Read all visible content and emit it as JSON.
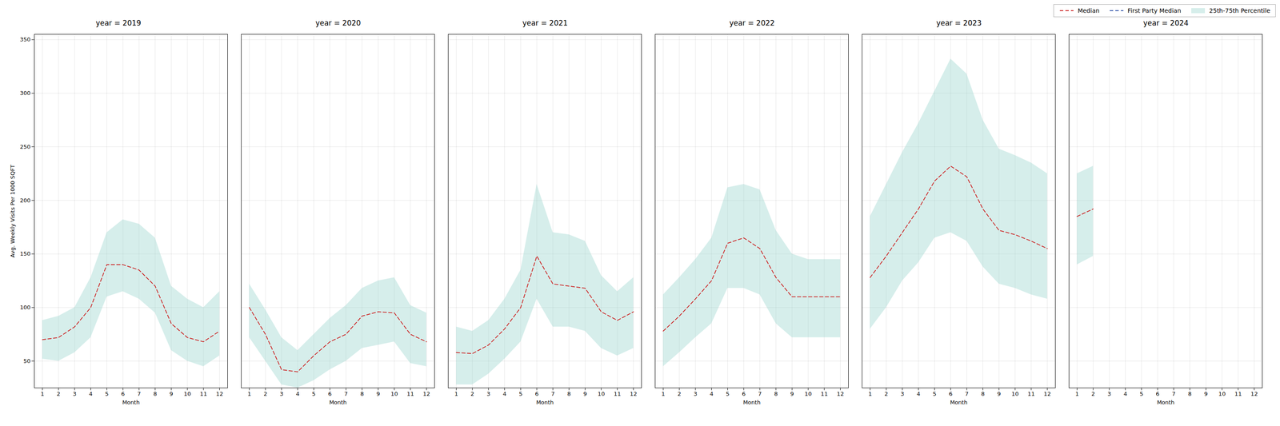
{
  "chart_data": [
    {
      "type": "line",
      "title": "year = 2019",
      "xlabel": "Month",
      "ylabel": "Avg. Weekly Visits Per 1000 SQFT",
      "x": [
        1,
        2,
        3,
        4,
        5,
        6,
        7,
        8,
        9,
        10,
        11,
        12
      ],
      "series": [
        {
          "name": "Median",
          "color": "#cc2222",
          "line_style": "dashed",
          "values": [
            70,
            72,
            82,
            100,
            140,
            140,
            135,
            120,
            85,
            72,
            68,
            78
          ]
        },
        {
          "name": "First Party Median",
          "color": "#3355aa",
          "line_style": "dashed",
          "values": [
            null,
            null,
            null,
            null,
            null,
            null,
            null,
            null,
            null,
            null,
            null,
            null
          ]
        },
        {
          "name": "25th-75th Percentile",
          "type": "band",
          "color": "#99d4cc",
          "lower": [
            52,
            50,
            58,
            72,
            110,
            115,
            108,
            95,
            60,
            50,
            45,
            55
          ],
          "upper": [
            88,
            92,
            100,
            128,
            170,
            182,
            178,
            165,
            120,
            108,
            100,
            115
          ]
        }
      ],
      "xlim": [
        0.5,
        12.5
      ],
      "xticks": [
        1,
        2,
        3,
        4,
        5,
        6,
        7,
        8,
        9,
        10,
        11,
        12
      ],
      "ylim": [
        25,
        355
      ],
      "yticks": [
        50,
        100,
        150,
        200,
        250,
        300,
        350
      ],
      "grid": true
    },
    {
      "type": "line",
      "title": "year = 2020",
      "xlabel": "Month",
      "x": [
        1,
        2,
        3,
        4,
        5,
        6,
        7,
        8,
        9,
        10,
        11,
        12
      ],
      "series": [
        {
          "name": "Median",
          "color": "#cc2222",
          "line_style": "dashed",
          "values": [
            100,
            75,
            42,
            40,
            55,
            68,
            75,
            92,
            96,
            95,
            75,
            68
          ]
        },
        {
          "name": "First Party Median",
          "color": "#3355aa",
          "line_style": "dashed",
          "values": [
            null,
            null,
            null,
            null,
            null,
            null,
            null,
            null,
            null,
            null,
            null,
            null
          ]
        },
        {
          "name": "25th-75th Percentile",
          "type": "band",
          "color": "#99d4cc",
          "lower": [
            72,
            50,
            28,
            25,
            32,
            42,
            50,
            62,
            65,
            68,
            48,
            45
          ],
          "upper": [
            122,
            98,
            72,
            60,
            75,
            90,
            102,
            118,
            125,
            128,
            102,
            95
          ]
        }
      ],
      "xlim": [
        0.5,
        12.5
      ],
      "xticks": [
        1,
        2,
        3,
        4,
        5,
        6,
        7,
        8,
        9,
        10,
        11,
        12
      ],
      "ylim": [
        25,
        355
      ],
      "yticks": [
        50,
        100,
        150,
        200,
        250,
        300,
        350
      ],
      "grid": true,
      "tick_labels": "x"
    },
    {
      "type": "line",
      "title": "year = 2021",
      "xlabel": "Month",
      "x": [
        1,
        2,
        3,
        4,
        5,
        6,
        7,
        8,
        9,
        10,
        11,
        12
      ],
      "series": [
        {
          "name": "Median",
          "color": "#cc2222",
          "line_style": "dashed",
          "values": [
            58,
            57,
            65,
            80,
            100,
            148,
            122,
            120,
            118,
            96,
            88,
            96
          ]
        },
        {
          "name": "First Party Median",
          "color": "#3355aa",
          "line_style": "dashed",
          "values": [
            null,
            null,
            null,
            null,
            null,
            null,
            null,
            null,
            null,
            null,
            null,
            null
          ]
        },
        {
          "name": "25th-75th Percentile",
          "type": "band",
          "color": "#99d4cc",
          "lower": [
            28,
            28,
            38,
            52,
            68,
            108,
            82,
            82,
            78,
            62,
            55,
            62
          ],
          "upper": [
            82,
            78,
            88,
            108,
            135,
            215,
            170,
            168,
            162,
            130,
            115,
            128
          ]
        }
      ],
      "xlim": [
        0.5,
        12.5
      ],
      "xticks": [
        1,
        2,
        3,
        4,
        5,
        6,
        7,
        8,
        9,
        10,
        11,
        12
      ],
      "ylim": [
        25,
        355
      ],
      "yticks": [
        50,
        100,
        150,
        200,
        250,
        300,
        350
      ],
      "grid": true,
      "tick_labels": "x"
    },
    {
      "type": "line",
      "title": "year = 2022",
      "xlabel": "Month",
      "x": [
        1,
        2,
        3,
        4,
        5,
        6,
        7,
        8,
        9,
        10,
        11,
        12
      ],
      "series": [
        {
          "name": "Median",
          "color": "#cc2222",
          "line_style": "dashed",
          "values": [
            78,
            92,
            108,
            125,
            160,
            165,
            155,
            128,
            110,
            110,
            110,
            110
          ]
        },
        {
          "name": "First Party Median",
          "color": "#3355aa",
          "line_style": "dashed",
          "values": [
            null,
            null,
            null,
            null,
            null,
            null,
            null,
            null,
            null,
            null,
            null,
            null
          ]
        },
        {
          "name": "25th-75th Percentile",
          "type": "band",
          "color": "#99d4cc",
          "lower": [
            45,
            58,
            72,
            85,
            118,
            118,
            112,
            85,
            72,
            72,
            72,
            72
          ],
          "upper": [
            112,
            128,
            145,
            165,
            212,
            215,
            210,
            172,
            150,
            145,
            145,
            145
          ]
        }
      ],
      "xlim": [
        0.5,
        12.5
      ],
      "xticks": [
        1,
        2,
        3,
        4,
        5,
        6,
        7,
        8,
        9,
        10,
        11,
        12
      ],
      "ylim": [
        25,
        355
      ],
      "yticks": [
        50,
        100,
        150,
        200,
        250,
        300,
        350
      ],
      "grid": true,
      "tick_labels": "x"
    },
    {
      "type": "line",
      "title": "year = 2023",
      "xlabel": "Month",
      "x": [
        1,
        2,
        3,
        4,
        5,
        6,
        7,
        8,
        9,
        10,
        11,
        12
      ],
      "series": [
        {
          "name": "Median",
          "color": "#cc2222",
          "line_style": "dashed",
          "values": [
            128,
            148,
            170,
            192,
            218,
            232,
            222,
            192,
            172,
            168,
            162,
            155
          ]
        },
        {
          "name": "First Party Median",
          "color": "#3355aa",
          "line_style": "dashed",
          "values": [
            null,
            null,
            null,
            null,
            null,
            null,
            null,
            null,
            null,
            null,
            null,
            null
          ]
        },
        {
          "name": "25th-75th Percentile",
          "type": "band",
          "color": "#99d4cc",
          "lower": [
            80,
            100,
            125,
            142,
            165,
            170,
            162,
            138,
            122,
            118,
            112,
            108
          ],
          "upper": [
            185,
            215,
            245,
            272,
            302,
            332,
            318,
            275,
            248,
            242,
            235,
            225
          ]
        }
      ],
      "xlim": [
        0.5,
        12.5
      ],
      "xticks": [
        1,
        2,
        3,
        4,
        5,
        6,
        7,
        8,
        9,
        10,
        11,
        12
      ],
      "ylim": [
        25,
        355
      ],
      "yticks": [
        50,
        100,
        150,
        200,
        250,
        300,
        350
      ],
      "grid": true,
      "tick_labels": "x"
    },
    {
      "type": "line",
      "title": "year = 2024",
      "xlabel": "Month",
      "x": [
        1,
        2,
        3,
        4,
        5,
        6,
        7,
        8,
        9,
        10,
        11,
        12
      ],
      "series": [
        {
          "name": "Median",
          "color": "#cc2222",
          "line_style": "dashed",
          "values": [
            185,
            192,
            null,
            null,
            null,
            null,
            null,
            null,
            null,
            null,
            null,
            null
          ]
        },
        {
          "name": "First Party Median",
          "color": "#3355aa",
          "line_style": "dashed",
          "values": [
            null,
            null,
            null,
            null,
            null,
            null,
            null,
            null,
            null,
            null,
            null,
            null
          ]
        },
        {
          "name": "25th-75th Percentile",
          "type": "band",
          "color": "#99d4cc",
          "lower": [
            140,
            148,
            null,
            null,
            null,
            null,
            null,
            null,
            null,
            null,
            null,
            null
          ],
          "upper": [
            225,
            232,
            null,
            null,
            null,
            null,
            null,
            null,
            null,
            null,
            null,
            null
          ]
        }
      ],
      "xlim": [
        0.5,
        12.5
      ],
      "xticks": [
        1,
        2,
        3,
        4,
        5,
        6,
        7,
        8,
        9,
        10,
        11,
        12
      ],
      "ylim": [
        25,
        355
      ],
      "yticks": [
        50,
        100,
        150,
        200,
        250,
        300,
        350
      ],
      "grid": true,
      "tick_labels": "x",
      "legend": "upper right"
    }
  ]
}
